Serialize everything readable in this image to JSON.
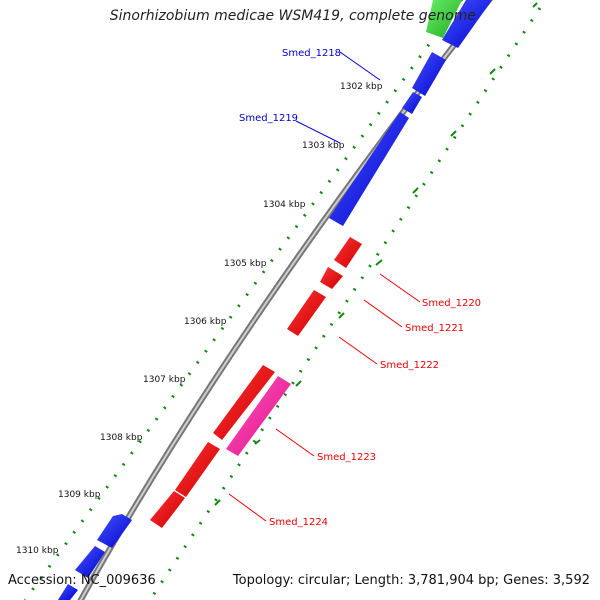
{
  "title": "Sinorhizobium medicae WSM419, complete genome",
  "footer": {
    "accession": "Accession: NC_009636",
    "summary": "Topology: circular; Length: 3,781,904 bp; Genes: 3,592"
  },
  "colors": {
    "forward_gene": "#0000ee",
    "reverse_gene": "#ee0000",
    "reverse_gene_alt": "#ff2aa0",
    "rna_gene": "#44cc44",
    "backbone": "#888888",
    "tick": "#118811",
    "forward_label": "#0000cc",
    "reverse_label": "#ee0000",
    "scale_label": "#111111"
  },
  "scale_labels": [
    "1302 kbp",
    "1303 kbp",
    "1304 kbp",
    "1305 kbp",
    "1306 kbp",
    "1307 kbp",
    "1308 kbp",
    "1309 kbp",
    "1310 kbp"
  ],
  "gene_labels": {
    "forward": [
      "Smed_1218",
      "Smed_1219"
    ],
    "reverse": [
      "Smed_1220",
      "Smed_1221",
      "Smed_1222",
      "Smed_1223",
      "Smed_1224"
    ]
  }
}
